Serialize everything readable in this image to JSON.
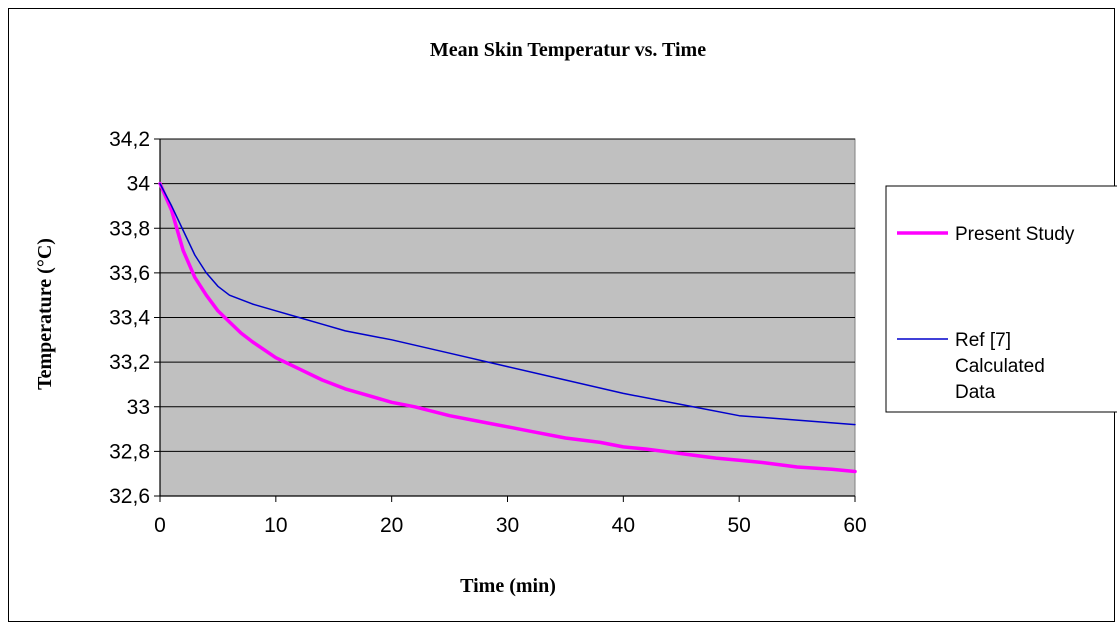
{
  "chart_data": {
    "type": "line",
    "title": "Mean Skin Temperatur vs. Time",
    "xlabel": "Time (min)",
    "ylabel": "Temperature (°C)",
    "xlim": [
      0,
      60
    ],
    "ylim": [
      32.6,
      34.2
    ],
    "x_ticks": [
      "0",
      "10",
      "20",
      "30",
      "40",
      "50",
      "60"
    ],
    "x_tick_values": [
      0,
      10,
      20,
      30,
      40,
      50,
      60
    ],
    "y_ticks": [
      "32,6",
      "32,8",
      "33",
      "33,2",
      "33,4",
      "33,6",
      "33,8",
      "34",
      "34,2"
    ],
    "y_tick_values": [
      32.6,
      32.8,
      33.0,
      33.2,
      33.4,
      33.6,
      33.8,
      34.0,
      34.2
    ],
    "grid": true,
    "legend_position": "right",
    "plot_background": "#C0C0C0",
    "series": [
      {
        "name": "Present Study",
        "color": "#FF00FF",
        "x": [
          0,
          1,
          2,
          3,
          4,
          5,
          6,
          7,
          8,
          10,
          12,
          14,
          16,
          18,
          20,
          22,
          25,
          28,
          30,
          32,
          35,
          38,
          40,
          42,
          45,
          48,
          50,
          52,
          55,
          58,
          60
        ],
        "y": [
          34.0,
          33.88,
          33.7,
          33.58,
          33.5,
          33.43,
          33.38,
          33.33,
          33.29,
          33.22,
          33.17,
          33.12,
          33.08,
          33.05,
          33.02,
          33.0,
          32.96,
          32.93,
          32.91,
          32.89,
          32.86,
          32.84,
          32.82,
          32.81,
          32.79,
          32.77,
          32.76,
          32.75,
          32.73,
          32.72,
          32.71
        ]
      },
      {
        "name": "Ref [7] Calculated Data",
        "legend_lines": [
          "Ref [7]",
          "Calculated",
          "Data"
        ],
        "color": "#0000CC",
        "x": [
          0,
          1,
          2,
          3,
          4,
          5,
          6,
          8,
          10,
          12,
          14,
          16,
          18,
          20,
          25,
          30,
          35,
          40,
          45,
          50,
          55,
          60
        ],
        "y": [
          34.0,
          33.9,
          33.79,
          33.68,
          33.6,
          33.54,
          33.5,
          33.46,
          33.43,
          33.4,
          33.37,
          33.34,
          33.32,
          33.3,
          33.24,
          33.18,
          33.12,
          33.06,
          33.01,
          32.96,
          32.94,
          32.92
        ]
      }
    ]
  }
}
